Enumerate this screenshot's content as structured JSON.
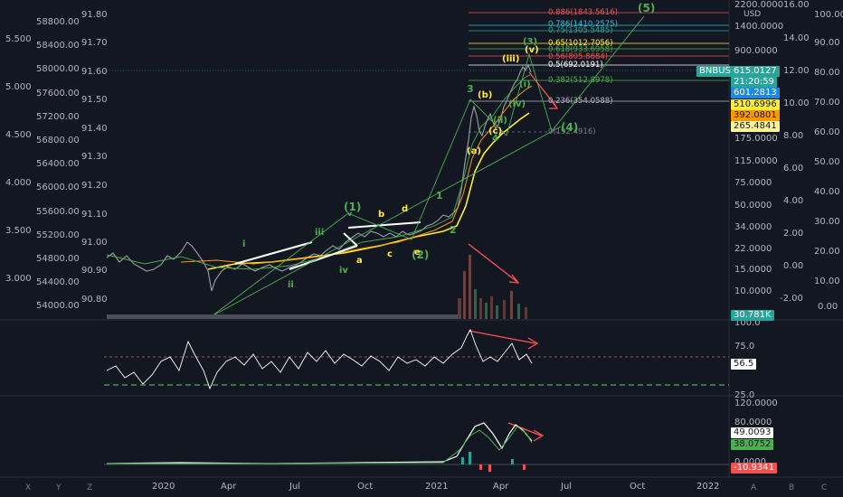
{
  "axes": {
    "far_left": [
      "5.500",
      "5.000",
      "4.500",
      "4.000",
      "3.500",
      "3.000"
    ],
    "left": [
      "58800.00",
      "58400.00",
      "58000.00",
      "57600.00",
      "57200.00",
      "56800.00",
      "56400.00",
      "56000.00",
      "55600.00",
      "55200.00",
      "54800.00",
      "54400.00",
      "54000.00"
    ],
    "mid": [
      "91.80",
      "91.70",
      "91.60",
      "91.50",
      "91.40",
      "91.30",
      "91.20",
      "91.10",
      "91.00",
      "90.90",
      "90.80"
    ],
    "price": [
      "2200.0000",
      "1400.0000",
      "900.0000",
      "175.0000",
      "115.0000",
      "75.0000",
      "50.0000",
      "34.0000",
      "22.0000",
      "15.0000",
      "10.0000"
    ],
    "right1": [
      "16.00",
      "14.00",
      "12.00",
      "10.00",
      "8.00",
      "6.00",
      "4.00",
      "2.00",
      "0.00",
      "-2.00"
    ],
    "right2": [
      "100.00",
      "90.00",
      "80.00",
      "70.00",
      "60.00",
      "50.00",
      "40.00",
      "30.00",
      "20.00",
      "10.00",
      "0.00"
    ],
    "currency": "USD",
    "rsi": [
      "100.0",
      "75.0",
      "25.0"
    ],
    "osc": [
      "120.0000",
      "80.0000",
      "0.0000"
    ]
  },
  "tags": {
    "symbol": "BNBUSD",
    "price": "615.0127",
    "countdown": "21:20:59",
    "ma1": "601.2813",
    "ma2": "510.6996",
    "ma3": "392.0801",
    "ma4": "265.4841",
    "volume": "30.781K",
    "rsi": "56.5",
    "osc1": "49.0093",
    "osc2": "38.0752",
    "osc3": "-10.9341"
  },
  "fib_levels": {
    "l1": "0.886(1843.5616)",
    "l2": "0.786(1410.2575)",
    "l3": "0.75(1305.5485)",
    "l4": "0.65(1012.7056)",
    "l5": "0.618(933.6958)",
    "l6": "0.56(805.8684)",
    "l7": "0.5(692.0191)",
    "l8": "0.382(512.8978)",
    "l9": "0.236(354.0588)",
    "l10": "0(192.4916)"
  },
  "waves": {
    "w5": "(5)",
    "w3big": "(3)",
    "w5small": "(v)",
    "iii": "(iii)",
    "i_small": "(i)",
    "b": "(b)",
    "ii_small": "(ii)",
    "iv_small": "(iv)",
    "a": "(a)",
    "c": "(c)",
    "w4": "(4)",
    "three": "3",
    "one": "1",
    "two": "2",
    "w1": "(1)",
    "w2": "(2)",
    "b_lc": "b",
    "d_lc": "d",
    "c_lc": "c",
    "e_lc": "e",
    "a_lc": "a",
    "i_r": "i",
    "ii_r": "ii",
    "iii_r": "iii",
    "iv_r": "iv",
    "v_r": "v",
    "four": "4"
  },
  "months": [
    "2020",
    "Apr",
    "Jul",
    "Oct",
    "2021",
    "Apr",
    "Jul",
    "Oct",
    "2022"
  ],
  "corners": {
    "x": "X",
    "y": "Y",
    "z": "Z",
    "a": "A",
    "b": "B",
    "c": "C"
  },
  "colors": {
    "bg": "#131722",
    "green": "#4caf50",
    "yellow": "#ffeb3b",
    "red": "#ff5252",
    "white": "#ffffff",
    "teal": "#26a69a"
  }
}
